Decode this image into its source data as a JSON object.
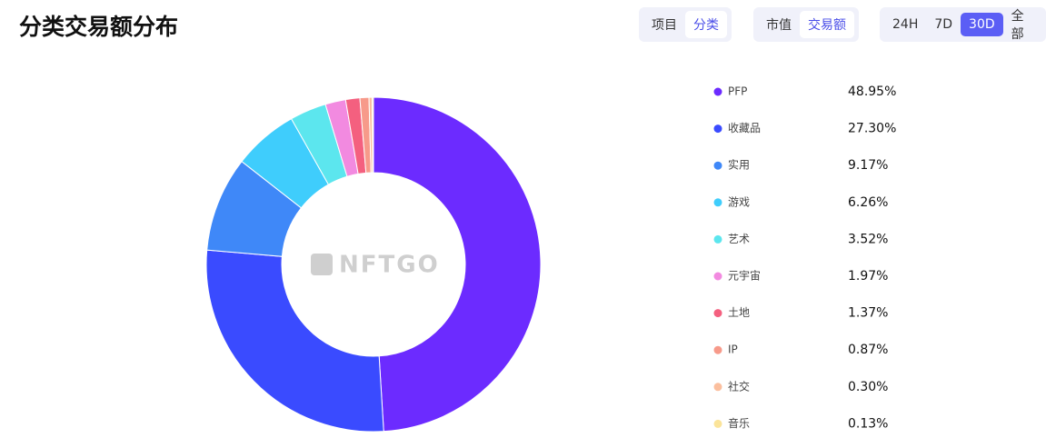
{
  "chart_data": {
    "type": "donut",
    "title": "分类交易额分布",
    "watermark": "NFTGO",
    "categories": [
      "PFP",
      "收藏品",
      "实用",
      "游戏",
      "艺术",
      "元宇宙",
      "土地",
      "IP",
      "社交",
      "音乐"
    ],
    "values": [
      48.95,
      27.3,
      9.17,
      6.26,
      3.52,
      1.97,
      1.37,
      0.87,
      0.3,
      0.13
    ],
    "value_labels": [
      "48.95%",
      "27.30%",
      "9.17%",
      "6.26%",
      "3.52%",
      "1.97%",
      "1.37%",
      "0.87%",
      "0.30%",
      "0.13%"
    ],
    "colors": [
      "#6c2bff",
      "#3a4bff",
      "#3f88f8",
      "#3fcdfc",
      "#5ce6ee",
      "#f28ae0",
      "#f4607f",
      "#f79a8a",
      "#fbbf9e",
      "#fbe49a"
    ]
  },
  "tab_groups": [
    {
      "items": [
        "项目",
        "分类"
      ],
      "selected": 1,
      "style": "light"
    },
    {
      "items": [
        "市值",
        "交易额"
      ],
      "selected": 1,
      "style": "light"
    },
    {
      "items": [
        "24H",
        "7D",
        "30D",
        "全部"
      ],
      "selected": 2,
      "style": "solid"
    }
  ]
}
